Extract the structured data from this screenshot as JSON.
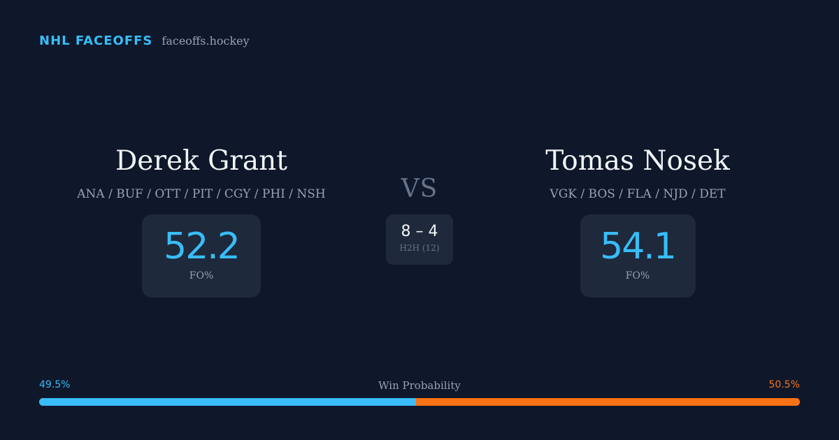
{
  "brand": {
    "name": "NHL FACEOFFS",
    "domain": "faceoffs.hockey"
  },
  "players": {
    "left": {
      "name": "Derek Grant",
      "teams": "ANA / BUF / OTT / PIT / CGY / PHI / NSH",
      "stat_value": "52.2",
      "stat_label": "FO%"
    },
    "right": {
      "name": "Tomas Nosek",
      "teams": "VGK / BOS / FLA / NJD / DET",
      "stat_value": "54.1",
      "stat_label": "FO%"
    }
  },
  "vs_label": "VS",
  "h2h": {
    "score": "8 – 4",
    "label": "H2H (12)"
  },
  "win_probability": {
    "title": "Win Probability",
    "left_label": "49.5%",
    "right_label": "50.5%",
    "left_value": 49.5,
    "right_value": 50.5
  },
  "colors": {
    "background": "#0f172a",
    "card": "#1e293b",
    "accent_left": "#38bdf8",
    "accent_right": "#f97316"
  }
}
